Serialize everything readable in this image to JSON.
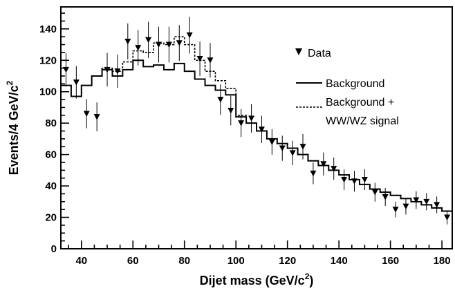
{
  "chart_data": {
    "type": "line",
    "xlabel": "Dijet mass (GeV/c",
    "xlabel_sup": "2",
    "xlabel_end": ")",
    "ylabel": "Events/4 GeV/c",
    "ylabel_sup": "2",
    "xlim": [
      32,
      184
    ],
    "ylim": [
      0,
      154
    ],
    "xticks": [
      40,
      60,
      80,
      100,
      120,
      140,
      160,
      180
    ],
    "yticks": [
      0,
      20,
      40,
      60,
      80,
      100,
      120,
      140
    ],
    "legend_position": "top-right",
    "legend": {
      "data_label": "Data",
      "background_label": "Background",
      "signal_label_line1": "Background +",
      "signal_label_line2": "WW/WZ signal"
    },
    "bin_edges": [
      32,
      36,
      40,
      44,
      48,
      52,
      56,
      60,
      64,
      68,
      72,
      76,
      80,
      84,
      88,
      92,
      96,
      100,
      104,
      108,
      112,
      116,
      120,
      124,
      128,
      132,
      136,
      140,
      144,
      148,
      152,
      156,
      160,
      164,
      168,
      172,
      176,
      180,
      184
    ],
    "series": [
      {
        "name": "Background",
        "style": "solid",
        "values": [
          104,
          97,
          104,
          110,
          114,
          110,
          114,
          120,
          116,
          117,
          114,
          118,
          113,
          108,
          104,
          101,
          98,
          84,
          80,
          75,
          70,
          67,
          64,
          60,
          56,
          53,
          50,
          47,
          44,
          41,
          38,
          36,
          34,
          32,
          30,
          28,
          26,
          24
        ]
      },
      {
        "name": "Background + WW/WZ signal",
        "style": "dashed",
        "values": [
          104,
          97,
          104,
          110,
          115,
          113,
          119,
          126,
          125,
          131,
          130,
          135,
          130,
          120,
          113,
          107,
          102,
          85,
          80,
          75,
          70,
          67,
          64,
          60,
          56,
          53,
          50,
          47,
          44,
          41,
          38,
          36,
          34,
          32,
          30,
          28,
          26,
          24
        ]
      },
      {
        "name": "Data",
        "style": "points",
        "x": [
          34,
          38,
          42,
          46,
          50,
          54,
          58,
          62,
          66,
          70,
          74,
          78,
          82,
          86,
          90,
          94,
          98,
          102,
          106,
          110,
          114,
          118,
          122,
          126,
          130,
          134,
          138,
          142,
          146,
          150,
          154,
          158,
          162,
          166,
          170,
          174,
          178,
          182
        ],
        "y": [
          114,
          106,
          86,
          84,
          114,
          113,
          132,
          128,
          133,
          130,
          130,
          131,
          136,
          121,
          120,
          95,
          88,
          80,
          83,
          76,
          68,
          64,
          61,
          65,
          48,
          54,
          51,
          44,
          43,
          44,
          36,
          33,
          25,
          27,
          31,
          30,
          28,
          20
        ],
        "err": [
          10.7,
          10.3,
          9.3,
          9.2,
          10.7,
          10.6,
          11.5,
          11.3,
          11.5,
          11.4,
          11.4,
          11.4,
          11.7,
          11.0,
          11.0,
          9.7,
          9.4,
          8.9,
          9.1,
          8.7,
          8.2,
          8.0,
          7.8,
          8.1,
          6.9,
          7.3,
          7.1,
          6.6,
          6.6,
          6.6,
          6.0,
          5.7,
          5.0,
          5.2,
          5.6,
          5.5,
          5.3,
          4.5
        ]
      }
    ]
  }
}
